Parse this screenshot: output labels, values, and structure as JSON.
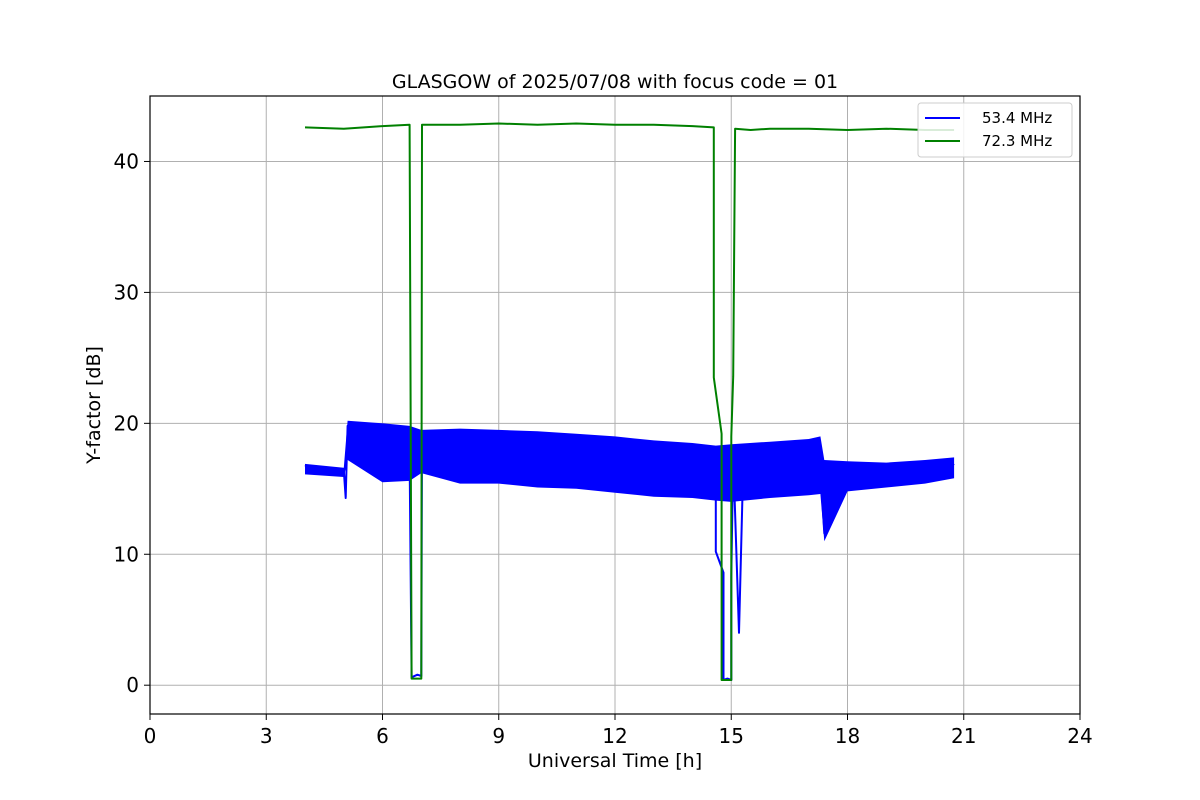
{
  "chart_data": {
    "type": "line",
    "title": "GLASGOW of 2025/07/08 with focus code = 01",
    "xlabel": "Universal Time [h]",
    "ylabel": "Y-factor [dB]",
    "xlim": [
      0,
      24
    ],
    "ylim": [
      -2.2,
      45
    ],
    "xticks": [
      0,
      3,
      6,
      9,
      12,
      15,
      18,
      21,
      24
    ],
    "yticks": [
      0,
      10,
      20,
      30,
      40
    ],
    "grid": true,
    "legend_position": "top-right",
    "series": [
      {
        "name": "53.4 MHz",
        "color": "#0000ff",
        "points": [
          [
            4.0,
            16.8
          ],
          [
            4.2,
            16.5
          ],
          [
            4.5,
            16.2
          ],
          [
            4.8,
            16.1
          ],
          [
            5.0,
            16.4
          ],
          [
            5.05,
            14.3
          ],
          [
            5.1,
            19.8
          ],
          [
            5.3,
            19.2
          ],
          [
            5.5,
            17.8
          ],
          [
            5.8,
            16.9
          ],
          [
            6.0,
            18.2
          ],
          [
            6.2,
            17.3
          ],
          [
            6.4,
            16.8
          ],
          [
            6.7,
            17.5
          ],
          [
            6.75,
            0.6
          ],
          [
            6.9,
            0.8
          ],
          [
            7.0,
            0.7
          ],
          [
            7.02,
            18.9
          ],
          [
            7.3,
            18.1
          ],
          [
            7.6,
            17.4
          ],
          [
            8.0,
            17.6
          ],
          [
            8.4,
            17.2
          ],
          [
            8.8,
            17.0
          ],
          [
            9.2,
            17.3
          ],
          [
            9.6,
            16.9
          ],
          [
            10.0,
            17.1
          ],
          [
            10.4,
            16.8
          ],
          [
            10.8,
            17.0
          ],
          [
            11.2,
            16.6
          ],
          [
            11.6,
            16.9
          ],
          [
            12.0,
            16.4
          ],
          [
            12.4,
            16.5
          ],
          [
            12.8,
            16.2
          ],
          [
            13.2,
            16.4
          ],
          [
            13.6,
            16.0
          ],
          [
            14.0,
            16.3
          ],
          [
            14.4,
            15.9
          ],
          [
            14.6,
            15.8
          ],
          [
            14.6,
            10.2
          ],
          [
            14.8,
            8.6
          ],
          [
            14.8,
            0.4
          ],
          [
            14.9,
            0.5
          ],
          [
            15.0,
            0.4
          ],
          [
            15.0,
            8.3
          ],
          [
            15.05,
            17.6
          ],
          [
            15.2,
            4.0
          ],
          [
            15.3,
            15.8
          ],
          [
            15.5,
            16.4
          ],
          [
            15.8,
            16.9
          ],
          [
            16.2,
            16.6
          ],
          [
            16.6,
            16.8
          ],
          [
            17.0,
            17.0
          ],
          [
            17.3,
            16.5
          ],
          [
            17.4,
            11.6
          ],
          [
            17.7,
            16.3
          ],
          [
            18.0,
            16.4
          ],
          [
            18.5,
            16.1
          ],
          [
            19.0,
            16.0
          ],
          [
            19.5,
            16.1
          ],
          [
            20.0,
            16.2
          ],
          [
            20.5,
            16.4
          ],
          [
            20.75,
            16.9
          ]
        ],
        "band_upper": [
          [
            4.0,
            16.9
          ],
          [
            5.0,
            16.6
          ],
          [
            5.1,
            20.2
          ],
          [
            6.0,
            20.0
          ],
          [
            6.7,
            19.8
          ],
          [
            7.0,
            19.5
          ],
          [
            8.0,
            19.6
          ],
          [
            9.0,
            19.5
          ],
          [
            10.0,
            19.4
          ],
          [
            11.0,
            19.2
          ],
          [
            12.0,
            19.0
          ],
          [
            13.0,
            18.7
          ],
          [
            14.0,
            18.5
          ],
          [
            14.6,
            18.3
          ],
          [
            15.0,
            18.4
          ],
          [
            16.0,
            18.6
          ],
          [
            17.0,
            18.8
          ],
          [
            17.3,
            19.0
          ],
          [
            17.4,
            17.2
          ],
          [
            18.0,
            17.1
          ],
          [
            19.0,
            17.0
          ],
          [
            20.0,
            17.2
          ],
          [
            20.75,
            17.4
          ]
        ],
        "band_lower": [
          [
            4.0,
            16.1
          ],
          [
            5.0,
            15.9
          ],
          [
            5.1,
            17.2
          ],
          [
            6.0,
            15.5
          ],
          [
            6.7,
            15.6
          ],
          [
            7.0,
            16.2
          ],
          [
            8.0,
            15.4
          ],
          [
            9.0,
            15.4
          ],
          [
            10.0,
            15.1
          ],
          [
            11.0,
            15.0
          ],
          [
            12.0,
            14.7
          ],
          [
            13.0,
            14.4
          ],
          [
            14.0,
            14.3
          ],
          [
            14.6,
            14.1
          ],
          [
            15.0,
            14.0
          ],
          [
            16.0,
            14.3
          ],
          [
            17.0,
            14.5
          ],
          [
            17.3,
            14.6
          ],
          [
            17.4,
            11.0
          ],
          [
            18.0,
            14.8
          ],
          [
            19.0,
            15.1
          ],
          [
            20.0,
            15.4
          ],
          [
            20.75,
            15.8
          ]
        ]
      },
      {
        "name": "72.3 MHz",
        "color": "#008000",
        "points": [
          [
            4.0,
            42.6
          ],
          [
            5.0,
            42.5
          ],
          [
            6.0,
            42.7
          ],
          [
            6.7,
            42.8
          ],
          [
            6.75,
            0.5
          ],
          [
            6.9,
            0.5
          ],
          [
            7.0,
            0.5
          ],
          [
            7.02,
            42.8
          ],
          [
            8.0,
            42.8
          ],
          [
            9.0,
            42.9
          ],
          [
            10.0,
            42.8
          ],
          [
            11.0,
            42.9
          ],
          [
            12.0,
            42.8
          ],
          [
            13.0,
            42.8
          ],
          [
            14.0,
            42.7
          ],
          [
            14.55,
            42.6
          ],
          [
            14.55,
            23.5
          ],
          [
            14.75,
            19.2
          ],
          [
            14.75,
            0.4
          ],
          [
            14.9,
            0.4
          ],
          [
            15.0,
            0.4
          ],
          [
            15.0,
            19.0
          ],
          [
            15.05,
            23.6
          ],
          [
            15.1,
            42.5
          ],
          [
            15.5,
            42.4
          ],
          [
            16.0,
            42.5
          ],
          [
            17.0,
            42.5
          ],
          [
            18.0,
            42.4
          ],
          [
            19.0,
            42.5
          ],
          [
            20.0,
            42.4
          ],
          [
            20.75,
            42.4
          ]
        ]
      }
    ]
  }
}
